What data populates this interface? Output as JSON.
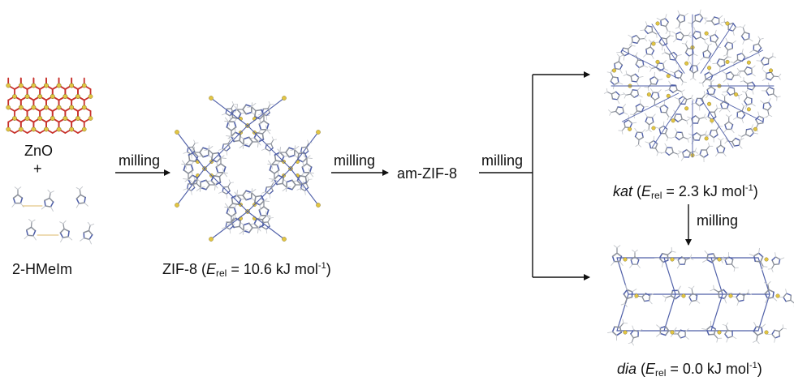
{
  "reactants": {
    "zno_label": "ZnO",
    "plus": "+",
    "hmeim_label": "2-HMeIm"
  },
  "steps": {
    "step1": "milling",
    "step2": "milling",
    "step3": "milling",
    "step4": "milling"
  },
  "intermediate": "am-ZIF-8",
  "zif8": {
    "name": "ZIF-8",
    "E": "E",
    "rel": "rel",
    "value": " = 10.6 kJ mol",
    "exp": "-1",
    "close": ")",
    "open": " ("
  },
  "kat": {
    "name": "kat",
    "E": "E",
    "rel": "rel",
    "value": " = 2.3 kJ mol",
    "exp": "-1",
    "close": ")",
    "open": " ("
  },
  "dia": {
    "name": "dia",
    "E": "E",
    "rel": "rel",
    "value": " = 0.0 kJ mol",
    "exp": "-1",
    "close": ")",
    "open": " ("
  },
  "colors": {
    "zn": "#e2c542",
    "o": "#c8322c",
    "n": "#4f5fa8",
    "c": "#8a8f99",
    "h": "#c4c7cc",
    "arrow": "#111111"
  }
}
